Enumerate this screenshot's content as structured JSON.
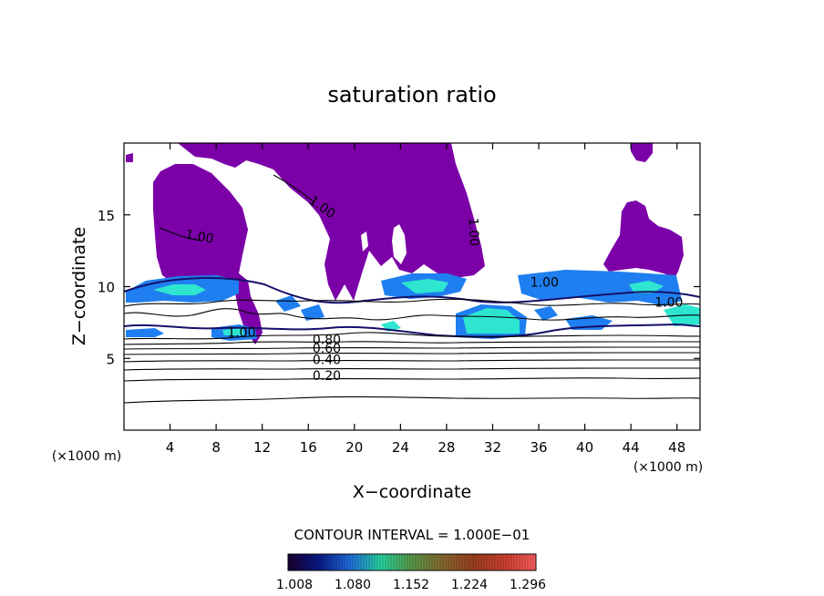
{
  "chart_data": {
    "type": "contour",
    "title": "saturation ratio",
    "xlabel": "X−coordinate",
    "ylabel": "Z−coordinate",
    "x_unit_left": "(×1000 m)",
    "x_unit_right": "(×1000 m)",
    "xlim": [
      0,
      50
    ],
    "ylim": [
      0,
      20
    ],
    "x_ticks": [
      "4",
      "8",
      "12",
      "16",
      "20",
      "24",
      "28",
      "32",
      "36",
      "40",
      "44",
      "48"
    ],
    "x_tick_values": [
      4,
      8,
      12,
      16,
      20,
      24,
      28,
      32,
      36,
      40,
      44,
      48
    ],
    "y_ticks": [
      "5",
      "10",
      "15"
    ],
    "y_tick_values": [
      5,
      10,
      15
    ],
    "contour_interval_text": "CONTOUR INTERVAL = 1.000E−01",
    "contour_labels": [
      {
        "text": "1.00",
        "x": 6.5,
        "z": 13.2,
        "rot": 10
      },
      {
        "text": "1.00",
        "x": 17.0,
        "z": 15.3,
        "rot": 35
      },
      {
        "text": "1.00",
        "x": 30.0,
        "z": 13.8,
        "rot": 88
      },
      {
        "text": "1.00",
        "x": 10.2,
        "z": 6.5,
        "rot": 0
      },
      {
        "text": "1.00",
        "x": 36.5,
        "z": 10.0,
        "rot": 0
      },
      {
        "text": "1.00",
        "x": 47.3,
        "z": 8.6,
        "rot": 0
      },
      {
        "text": "0.80",
        "x": 17.6,
        "z": 6.0,
        "rot": 0
      },
      {
        "text": "0.60",
        "x": 17.6,
        "z": 5.4,
        "rot": 0
      },
      {
        "text": "0.40",
        "x": 17.6,
        "z": 4.6,
        "rot": 0
      },
      {
        "text": "0.20",
        "x": 17.6,
        "z": 3.5,
        "rot": 0
      }
    ],
    "colorbar": {
      "labels": [
        "1.008",
        "1.080",
        "1.152",
        "1.224",
        "1.296"
      ],
      "colors": [
        "#1a0033",
        "#0a1a8a",
        "#1f6fe0",
        "#27d6a0",
        "#5a9a48",
        "#8a6a30",
        "#a04020",
        "#d04030",
        "#ff6060"
      ]
    },
    "fill_colors": {
      "supersaturated": "#7b00a8",
      "cyan": "#2ee6d0",
      "blue": "#1f7ff0",
      "dark_blue": "#14106a"
    }
  }
}
